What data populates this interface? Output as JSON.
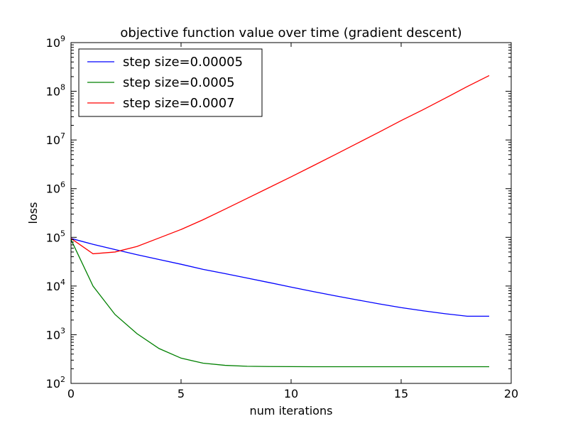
{
  "chart_data": {
    "type": "line",
    "title": "objective function value over time (gradient descent)",
    "xlabel": "num iterations",
    "ylabel": "loss",
    "xlim": [
      0,
      20
    ],
    "ylim": [
      100,
      1000000000
    ],
    "yscale": "log",
    "xticks": [
      "0",
      "5",
      "10",
      "15",
      "20"
    ],
    "yticks": [
      {
        "base": "10",
        "exp": "2"
      },
      {
        "base": "10",
        "exp": "3"
      },
      {
        "base": "10",
        "exp": "4"
      },
      {
        "base": "10",
        "exp": "5"
      },
      {
        "base": "10",
        "exp": "6"
      },
      {
        "base": "10",
        "exp": "7"
      },
      {
        "base": "10",
        "exp": "8"
      },
      {
        "base": "10",
        "exp": "9"
      }
    ],
    "grid": false,
    "legend_position": "top-left",
    "x": [
      0,
      1,
      2,
      3,
      4,
      5,
      6,
      7,
      8,
      9,
      10,
      11,
      12,
      13,
      14,
      15,
      16,
      17,
      18,
      19
    ],
    "series": [
      {
        "name": "step size=0.00005",
        "color": "#0000ff",
        "values": [
          95000,
          72000,
          56000,
          44000,
          35000,
          28000,
          22000,
          18000,
          14600,
          11800,
          9500,
          7700,
          6300,
          5200,
          4300,
          3600,
          3100,
          2700,
          2400,
          2400
        ]
      },
      {
        "name": "step size=0.0005",
        "color": "#008000",
        "values": [
          90000,
          10000,
          2600,
          1050,
          520,
          330,
          260,
          235,
          225,
          222,
          221,
          220,
          220,
          220,
          220,
          220,
          220,
          220,
          220,
          220
        ]
      },
      {
        "name": "step size=0.0007",
        "color": "#ff0000",
        "values": [
          95000,
          46000,
          50000,
          65000,
          97000,
          145000,
          230000,
          380000,
          630000,
          1050000,
          1750000,
          2950000,
          5000000,
          8500000,
          14500000,
          25000000,
          42000000,
          72000000,
          125000000,
          210000000
        ]
      }
    ]
  }
}
